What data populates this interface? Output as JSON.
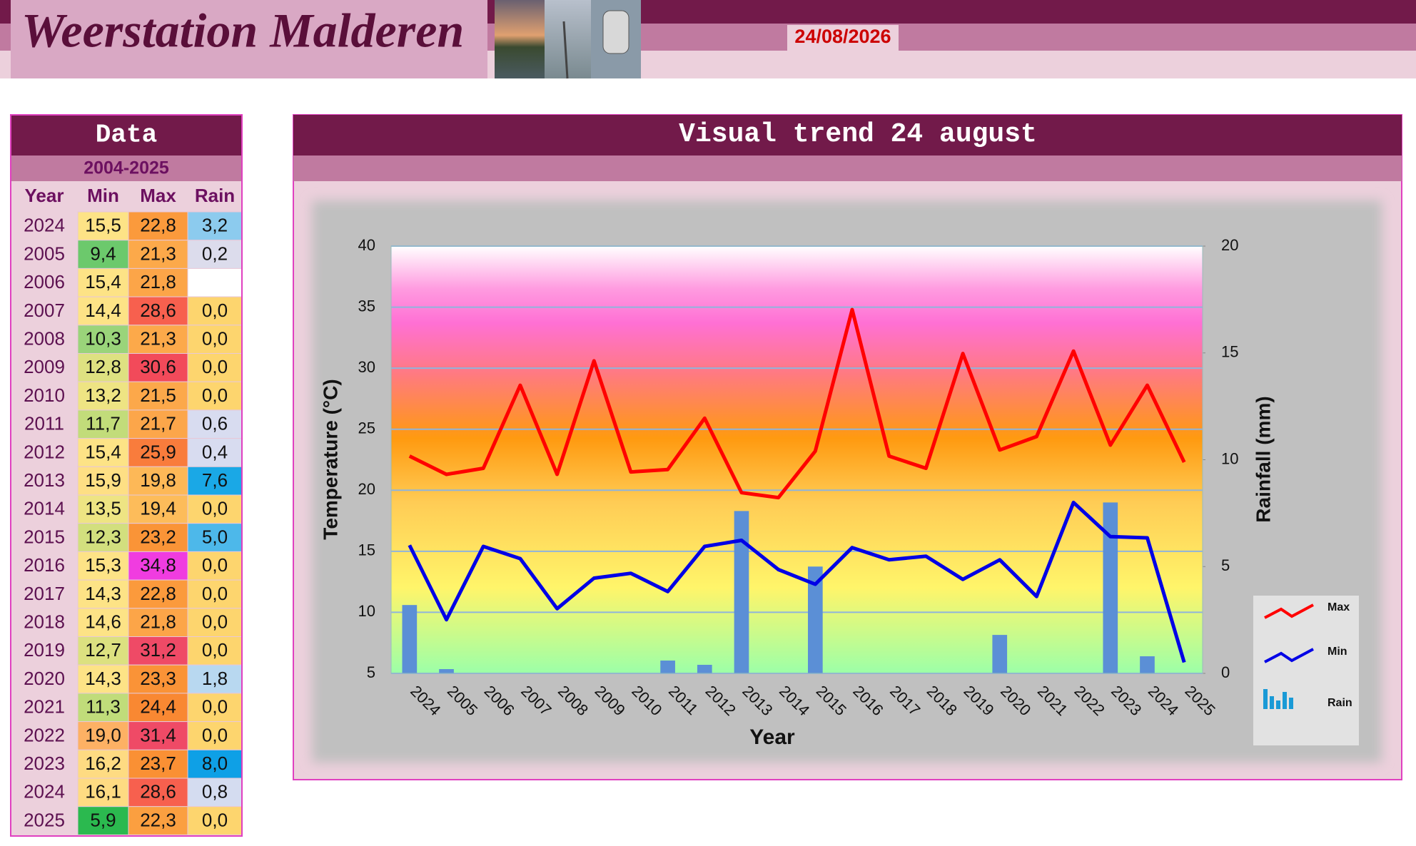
{
  "header": {
    "title": "Weerstation Malderen",
    "date": "24/08/2026"
  },
  "table": {
    "title": "Data",
    "subtitle": "2004-2025",
    "columns": [
      "Year",
      "Min",
      "Max",
      "Rain"
    ],
    "rows": [
      [
        "2024",
        "15,5",
        "22,8",
        "3,2"
      ],
      [
        "2005",
        "9,4",
        "21,3",
        "0,2"
      ],
      [
        "2006",
        "15,4",
        "21,8",
        null
      ],
      [
        "2007",
        "14,4",
        "28,6",
        "0,0"
      ],
      [
        "2008",
        "10,3",
        "21,3",
        "0,0"
      ],
      [
        "2009",
        "12,8",
        "30,6",
        "0,0"
      ],
      [
        "2010",
        "13,2",
        "21,5",
        "0,0"
      ],
      [
        "2011",
        "11,7",
        "21,7",
        "0,6"
      ],
      [
        "2012",
        "15,4",
        "25,9",
        "0,4"
      ],
      [
        "2013",
        "15,9",
        "19,8",
        "7,6"
      ],
      [
        "2014",
        "13,5",
        "19,4",
        "0,0"
      ],
      [
        "2015",
        "12,3",
        "23,2",
        "5,0"
      ],
      [
        "2016",
        "15,3",
        "34,8",
        "0,0"
      ],
      [
        "2017",
        "14,3",
        "22,8",
        "0,0"
      ],
      [
        "2018",
        "14,6",
        "21,8",
        "0,0"
      ],
      [
        "2019",
        "12,7",
        "31,2",
        "0,0"
      ],
      [
        "2020",
        "14,3",
        "23,3",
        "1,8"
      ],
      [
        "2021",
        "11,3",
        "24,4",
        "0,0"
      ],
      [
        "2022",
        "19,0",
        "31,4",
        "0,0"
      ],
      [
        "2023",
        "16,2",
        "23,7",
        "8,0"
      ],
      [
        "2024",
        "16,1",
        "28,6",
        "0,8"
      ],
      [
        "2025",
        "5,9",
        "22,3",
        "0,0"
      ]
    ],
    "cell_colors": [
      [
        "#fde386",
        "#fb9a3c",
        "#8ccbee"
      ],
      [
        "#6cc96c",
        "#fca94a",
        "#dcdcec"
      ],
      [
        "#fde386",
        "#fca548",
        "#ffffff"
      ],
      [
        "#fde386",
        "#f7604e",
        "#fdd56e"
      ],
      [
        "#9ad47a",
        "#fca94a",
        "#fdd56e"
      ],
      [
        "#dee181",
        "#f24a5a",
        "#fdd56e"
      ],
      [
        "#eee483",
        "#fca84a",
        "#fdd56e"
      ],
      [
        "#c2dc7a",
        "#fca64a",
        "#d8dcf0"
      ],
      [
        "#fde386",
        "#f97c3c",
        "#d8dcf0"
      ],
      [
        "#fedf84",
        "#fdb857",
        "#1aa8e6"
      ],
      [
        "#eee483",
        "#fdbc5a",
        "#fdd56e"
      ],
      [
        "#d2df7e",
        "#fa9437",
        "#4db8ea"
      ],
      [
        "#fde386",
        "#f03ce0",
        "#fdd56e"
      ],
      [
        "#fde386",
        "#fb9a3c",
        "#fdd56e"
      ],
      [
        "#fde386",
        "#fca548",
        "#fdd56e"
      ],
      [
        "#dce180",
        "#ef4a66",
        "#fdd56e"
      ],
      [
        "#fde386",
        "#fa9337",
        "#b8d8f0"
      ],
      [
        "#c0dc7a",
        "#f98832",
        "#fdd56e"
      ],
      [
        "#fdb164",
        "#ef4a66",
        "#fdd56e"
      ],
      [
        "#fedb82",
        "#fa9034",
        "#0ea0e6"
      ],
      [
        "#fedb82",
        "#f7604e",
        "#d4dcf0"
      ],
      [
        "#2bb94f",
        "#fb9f40",
        "#fdd56e"
      ]
    ]
  },
  "chart_data": {
    "type": "line",
    "title": "Visual trend 24 august",
    "x_label": "Year",
    "y_label": "Temperature (°C)",
    "y2_label": "Rainfall (mm)",
    "categories": [
      "2024",
      "2005",
      "2006",
      "2007",
      "2008",
      "2009",
      "2010",
      "2011",
      "2012",
      "2013",
      "2014",
      "2015",
      "2016",
      "2017",
      "2018",
      "2019",
      "2020",
      "2021",
      "2022",
      "2023",
      "2024",
      "2025"
    ],
    "series": [
      {
        "name": "Max",
        "color": "#ff0000",
        "type": "line",
        "values": [
          22.8,
          21.3,
          21.8,
          28.6,
          21.3,
          30.6,
          21.5,
          21.7,
          25.9,
          19.8,
          19.4,
          23.2,
          34.8,
          22.8,
          21.8,
          31.2,
          23.3,
          24.4,
          31.4,
          23.7,
          28.6,
          22.3
        ]
      },
      {
        "name": "Min",
        "color": "#0000e6",
        "type": "line",
        "values": [
          15.5,
          9.4,
          15.4,
          14.4,
          10.3,
          12.8,
          13.2,
          11.7,
          15.4,
          15.9,
          13.5,
          12.3,
          15.3,
          14.3,
          14.6,
          12.7,
          14.3,
          11.3,
          19.0,
          16.2,
          16.1,
          5.9
        ]
      },
      {
        "name": "Rain",
        "color": "#5b8fd6",
        "type": "bar",
        "axis": "y2",
        "values": [
          3.2,
          0.2,
          null,
          0,
          0,
          0,
          0,
          0.6,
          0.4,
          7.6,
          0,
          5.0,
          0,
          0,
          0,
          0,
          1.8,
          0,
          0,
          8.0,
          0.8,
          0
        ]
      }
    ],
    "ylim": [
      5,
      40
    ],
    "yticks": [
      5,
      10,
      15,
      20,
      25,
      30,
      35,
      40
    ],
    "y2lim": [
      0,
      20
    ],
    "y2ticks": [
      0,
      5,
      10,
      15,
      20
    ],
    "grid": true,
    "legend": "right"
  }
}
